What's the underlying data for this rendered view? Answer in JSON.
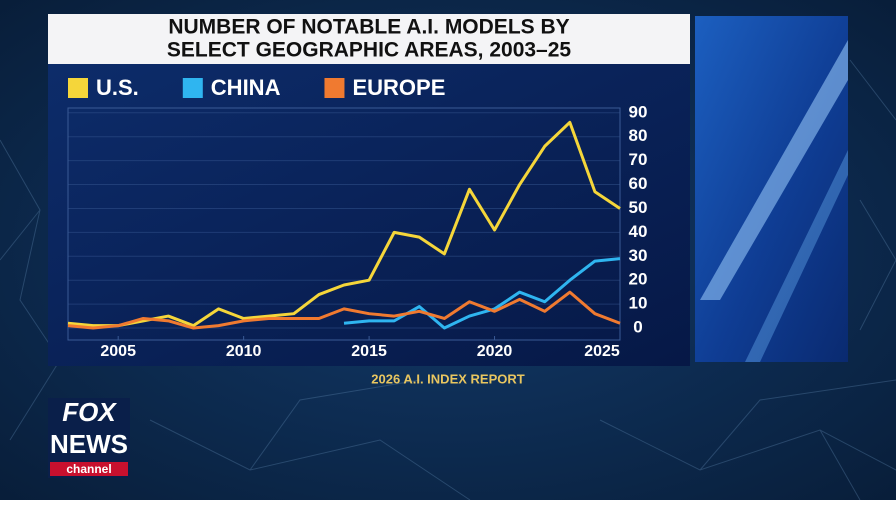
{
  "chart_data": {
    "type": "line",
    "title": [
      "NUMBER OF NOTABLE A.I. MODELS BY",
      "SELECT GEOGRAPHIC AREAS, 2003–25"
    ],
    "x": [
      2003,
      2004,
      2005,
      2006,
      2007,
      2008,
      2009,
      2010,
      2011,
      2012,
      2013,
      2014,
      2015,
      2016,
      2017,
      2018,
      2019,
      2020,
      2021,
      2022,
      2023,
      2024,
      2025
    ],
    "series": [
      {
        "name": "U.S.",
        "color": "#f5d63a",
        "values": [
          2,
          1,
          1,
          3,
          5,
          1,
          8,
          4,
          5,
          6,
          14,
          18,
          20,
          40,
          38,
          31,
          58,
          41,
          60,
          76,
          86,
          57,
          50
        ]
      },
      {
        "name": "CHINA",
        "color": "#2fb5f0",
        "values": [
          null,
          null,
          null,
          null,
          null,
          null,
          null,
          null,
          null,
          null,
          null,
          2,
          3,
          3,
          9,
          0,
          5,
          8,
          15,
          11,
          20,
          28,
          29
        ]
      },
      {
        "name": "EUROPE",
        "color": "#f07a30",
        "values": [
          1,
          0,
          1,
          4,
          3,
          0,
          1,
          3,
          4,
          4,
          4,
          8,
          6,
          5,
          7,
          4,
          11,
          7,
          12,
          7,
          15,
          6,
          2
        ]
      }
    ],
    "xlim": [
      2003,
      2025
    ],
    "xticks": [
      2005,
      2010,
      2015,
      2020,
      2025
    ],
    "ylim": [
      -5,
      92
    ],
    "yticks": [
      0,
      10,
      20,
      30,
      40,
      50,
      60,
      70,
      80,
      90
    ],
    "grid": true,
    "legend": "top",
    "source": "2026 A.I. INDEX REPORT"
  },
  "logo": {
    "top": "FOX",
    "middle": "NEWS",
    "bottom": "channel"
  }
}
